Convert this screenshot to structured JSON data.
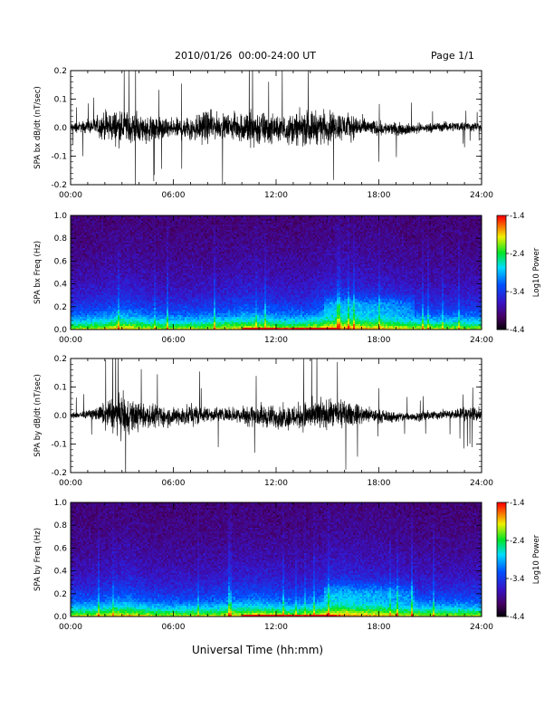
{
  "header": {
    "title": "2010/01/26  00:00-24:00 UT",
    "page": "Page 1/1"
  },
  "chart_data": [
    {
      "type": "line",
      "ylabel": "SPA bx dB/dt (nT/sec)",
      "ylim": [
        -0.2,
        0.2
      ],
      "yticks": [
        "0.2",
        "0.1",
        "0.0",
        "-0.1",
        "-0.2"
      ],
      "xticks": [
        "00:00",
        "06:00",
        "12:00",
        "18:00",
        "24:00"
      ],
      "xlim": [
        0,
        24
      ],
      "envelope": {
        "hours": [
          0,
          1,
          1.8,
          2.2,
          3,
          4,
          5,
          6,
          7,
          8,
          9,
          10,
          10.5,
          11,
          12,
          13,
          14,
          15,
          16,
          16.8,
          17.5,
          19,
          21,
          24
        ],
        "amplitude": [
          0.03,
          0.04,
          0.08,
          0.1,
          0.11,
          0.09,
          0.08,
          0.06,
          0.09,
          0.1,
          0.07,
          0.1,
          0.13,
          0.12,
          0.08,
          0.1,
          0.11,
          0.1,
          0.09,
          0.07,
          0.05,
          0.04,
          0.03,
          0.03
        ]
      }
    },
    {
      "type": "heatmap",
      "ylabel": "SPA bx Freq (Hz)",
      "ylim": [
        0.0,
        1.0
      ],
      "yticks": [
        "1.0",
        "0.8",
        "0.6",
        "0.4",
        "0.2",
        "0.0"
      ],
      "xticks": [
        "00:00",
        "06:00",
        "12:00",
        "18:00",
        "24:00"
      ],
      "xlim": [
        0,
        24
      ],
      "colorbar": {
        "label": "Log10 Power",
        "ticks": [
          "-1.4",
          "-2.4",
          "-3.4",
          "-4.4"
        ],
        "range": [
          -4.4,
          -1.4
        ]
      }
    },
    {
      "type": "line",
      "ylabel": "SPA by dB/dt (nT/sec)",
      "ylim": [
        -0.2,
        0.2
      ],
      "yticks": [
        "0.2",
        "0.1",
        "0.0",
        "-0.1",
        "-0.2"
      ],
      "xticks": [
        "00:00",
        "06:00",
        "12:00",
        "18:00",
        "24:00"
      ],
      "xlim": [
        0,
        24
      ],
      "envelope": {
        "hours": [
          0,
          1,
          1.8,
          2.5,
          3,
          4,
          5,
          6,
          7,
          8,
          9,
          10,
          11,
          12,
          13,
          14,
          15,
          16,
          17,
          18,
          20,
          22,
          23.5,
          24
        ],
        "amplitude": [
          0.02,
          0.03,
          0.06,
          0.12,
          0.13,
          0.09,
          0.07,
          0.06,
          0.07,
          0.05,
          0.04,
          0.06,
          0.08,
          0.07,
          0.08,
          0.1,
          0.09,
          0.08,
          0.06,
          0.04,
          0.03,
          0.03,
          0.05,
          0.04
        ]
      }
    },
    {
      "type": "heatmap",
      "ylabel": "SPA by Freq (Hz)",
      "ylim": [
        0.0,
        1.0
      ],
      "yticks": [
        "1.0",
        "0.8",
        "0.6",
        "0.4",
        "0.2",
        "0.0"
      ],
      "xticks": [
        "00:00",
        "06:00",
        "12:00",
        "18:00",
        "24:00"
      ],
      "xlim": [
        0,
        24
      ],
      "colorbar": {
        "label": "Log10 Power",
        "ticks": [
          "-1.4",
          "-2.4",
          "-3.4",
          "-4.4"
        ],
        "range": [
          -4.4,
          -1.4
        ]
      }
    }
  ],
  "xlabel": "Universal Time (hh:mm)"
}
